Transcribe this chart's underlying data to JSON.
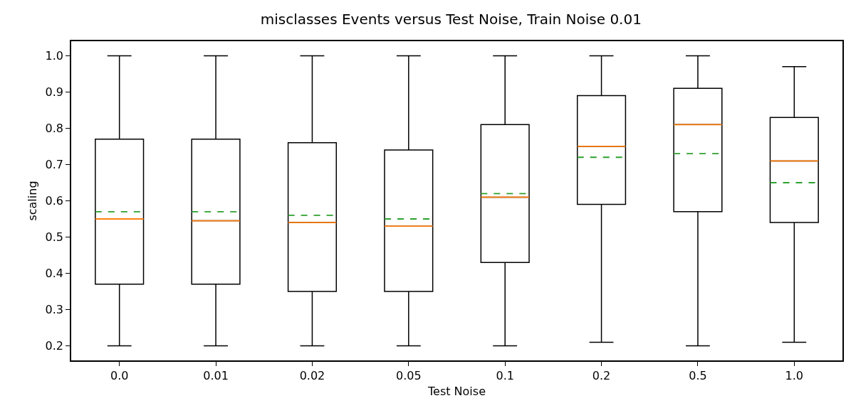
{
  "chart_data": {
    "type": "box",
    "title": "misclasses Events versus Test Noise, Train Noise 0.01",
    "xlabel": "Test Noise",
    "ylabel": "scaling",
    "categories": [
      "0.0",
      "0.01",
      "0.02",
      "0.05",
      "0.1",
      "0.2",
      "0.5",
      "1.0"
    ],
    "boxes": [
      {
        "low": 0.2,
        "q1": 0.37,
        "median": 0.55,
        "q3": 0.77,
        "high": 1.0,
        "mean": 0.57
      },
      {
        "low": 0.2,
        "q1": 0.37,
        "median": 0.545,
        "q3": 0.77,
        "high": 1.0,
        "mean": 0.57
      },
      {
        "low": 0.2,
        "q1": 0.35,
        "median": 0.54,
        "q3": 0.76,
        "high": 1.0,
        "mean": 0.56
      },
      {
        "low": 0.2,
        "q1": 0.35,
        "median": 0.53,
        "q3": 0.74,
        "high": 1.0,
        "mean": 0.55
      },
      {
        "low": 0.2,
        "q1": 0.43,
        "median": 0.61,
        "q3": 0.81,
        "high": 1.0,
        "mean": 0.62
      },
      {
        "low": 0.21,
        "q1": 0.59,
        "median": 0.75,
        "q3": 0.89,
        "high": 1.0,
        "mean": 0.72
      },
      {
        "low": 0.2,
        "q1": 0.57,
        "median": 0.81,
        "q3": 0.91,
        "high": 1.0,
        "mean": 0.73
      },
      {
        "low": 0.21,
        "q1": 0.54,
        "median": 0.71,
        "q3": 0.83,
        "high": 0.97,
        "mean": 0.65
      }
    ],
    "ylim": [
      0.16,
      1.04
    ],
    "yticks": [
      0.2,
      0.3,
      0.4,
      0.5,
      0.6,
      0.7,
      0.8,
      0.9,
      {
        "value": 1.0,
        "label": "1.0"
      }
    ],
    "grid": false
  }
}
